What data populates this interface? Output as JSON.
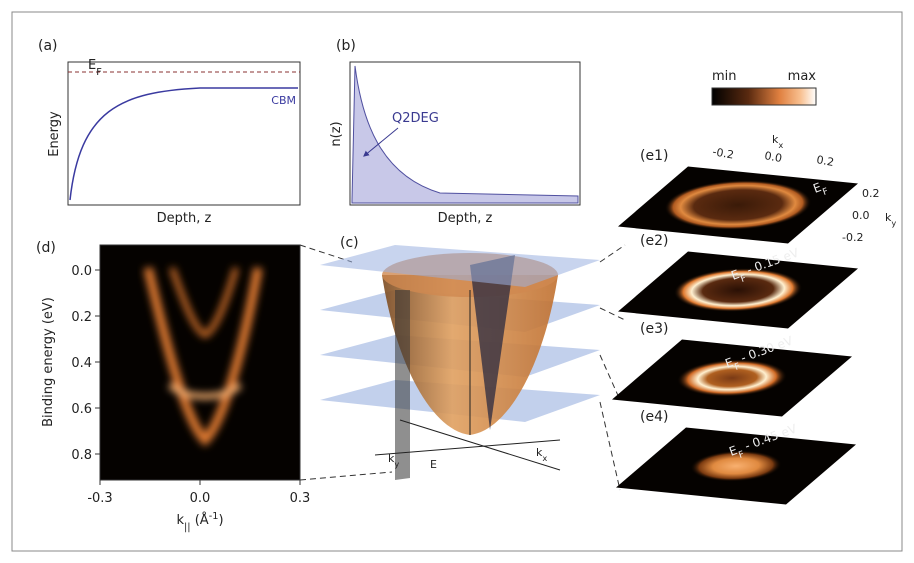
{
  "panels": {
    "a": {
      "label": "(a)",
      "ylabel": "Energy",
      "xlabel": "Depth, z",
      "fermi": {
        "main": "E",
        "sub": "F"
      },
      "curve_label": "CBM"
    },
    "b": {
      "label": "(b)",
      "ylabel": "n(z)",
      "xlabel": "Depth, z",
      "annotation": "Q2DEG"
    },
    "colorbar": {
      "min": "min",
      "max": "max"
    },
    "c": {
      "label": "(c)",
      "axes": [
        {
          "main": "k",
          "sub": "y"
        },
        {
          "main": "E"
        },
        {
          "main": "k",
          "sub": "x"
        }
      ]
    },
    "d": {
      "label": "(d)",
      "ylabel": "Binding energy (eV)",
      "yticks": [
        "0.0",
        "0.2",
        "0.4",
        "0.6",
        "0.8"
      ],
      "xticks": [
        "-0.3",
        "0.0",
        "0.3"
      ],
      "xlabel": {
        "main": "k",
        "sub": "||",
        "rest": " (Å",
        "sup": "-1",
        "end": ")"
      }
    },
    "e": [
      {
        "label": "(e1)",
        "energy": {
          "main": "E",
          "sub": "F"
        },
        "top_ticks": [
          "-0.2",
          "0.0",
          "0.2"
        ],
        "top_axis": {
          "main": "k",
          "sub": "x"
        },
        "side_ticks": [
          "0.2",
          "0.0",
          "-0.2"
        ],
        "side_axis": {
          "main": "k",
          "sub": "y"
        }
      },
      {
        "label": "(e2)",
        "energy": {
          "main": "E",
          "sub": "F",
          "rest": " - 0.15 eV"
        }
      },
      {
        "label": "(e3)",
        "energy": {
          "main": "E",
          "sub": "F",
          "rest": " - 0.30 eV"
        }
      },
      {
        "label": "(e4)",
        "energy": {
          "main": "E",
          "sub": "F",
          "rest": " - 0.45 eV"
        }
      }
    ]
  }
}
